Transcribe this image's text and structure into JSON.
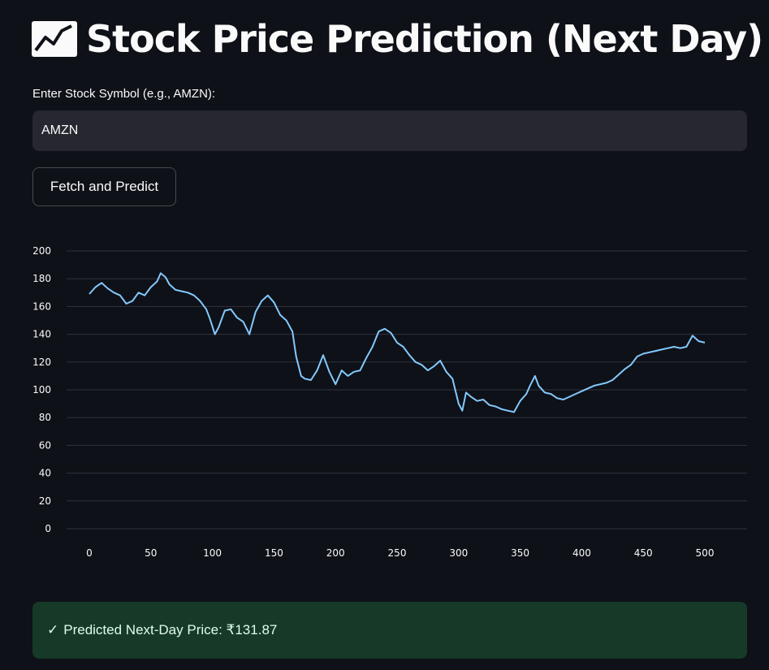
{
  "app": {
    "title": "Stock Price Prediction (Next Day)",
    "title_icon": "chart-increasing-icon"
  },
  "form": {
    "symbol_label": "Enter Stock Symbol (e.g., AMZN):",
    "symbol_value": "AMZN",
    "submit_label": "Fetch and Predict"
  },
  "result": {
    "icon": "check-icon",
    "text": "Predicted Next-Day Price: ₹131.87",
    "color": "#173928"
  },
  "chart_data": {
    "type": "line",
    "title": "",
    "xlabel": "",
    "ylabel": "",
    "xlim": [
      0,
      500
    ],
    "ylim": [
      0,
      200
    ],
    "x_ticks": [
      0,
      50,
      100,
      150,
      200,
      250,
      300,
      350,
      400,
      450,
      500
    ],
    "y_ticks": [
      0,
      20,
      40,
      60,
      80,
      100,
      120,
      140,
      160,
      180,
      200
    ],
    "grid": "horizontal",
    "line_color": "#83c9ff",
    "series": [
      {
        "x": [
          0,
          5,
          10,
          15,
          20,
          25,
          30,
          35,
          40,
          45,
          50,
          55,
          58,
          62,
          65,
          70,
          75,
          80,
          85,
          90,
          95,
          98,
          102,
          105,
          110,
          115,
          120,
          125,
          130,
          135,
          140,
          145,
          150,
          155,
          160,
          165,
          168,
          172,
          175,
          180,
          185,
          190,
          195,
          200,
          205,
          210,
          215,
          220,
          225,
          230,
          235,
          240,
          245,
          250,
          255,
          260,
          265,
          270,
          275,
          280,
          285,
          290,
          295,
          300,
          303,
          306,
          310,
          315,
          320,
          325,
          330,
          335,
          340,
          345,
          350,
          355,
          358,
          362,
          365,
          370,
          375,
          380,
          385,
          390,
          395,
          400,
          405,
          410,
          415,
          420,
          425,
          430,
          435,
          440,
          445,
          450,
          455,
          460,
          465,
          470,
          475,
          480,
          485,
          490,
          495,
          500
        ],
        "values": [
          169,
          174,
          177,
          173,
          170,
          168,
          162,
          164,
          170,
          168,
          174,
          178,
          184,
          181,
          176,
          172,
          171,
          170,
          168,
          164,
          158,
          151,
          140,
          145,
          157,
          158,
          152,
          149,
          140,
          156,
          164,
          168,
          163,
          154,
          150,
          142,
          124,
          110,
          108,
          107,
          114,
          125,
          113,
          104,
          114,
          110,
          113,
          114,
          123,
          131,
          142,
          144,
          141,
          134,
          131,
          125,
          120,
          118,
          114,
          117,
          121,
          113,
          108,
          90,
          85,
          98,
          95,
          92,
          93,
          89,
          88,
          86,
          85,
          84,
          92,
          97,
          103,
          110,
          103,
          98,
          97,
          94,
          93,
          95,
          97,
          99,
          101,
          103,
          104,
          105,
          107,
          111,
          115,
          118,
          124,
          126,
          127,
          128,
          129,
          130,
          131,
          130,
          131,
          139,
          135,
          134
        ]
      }
    ]
  }
}
